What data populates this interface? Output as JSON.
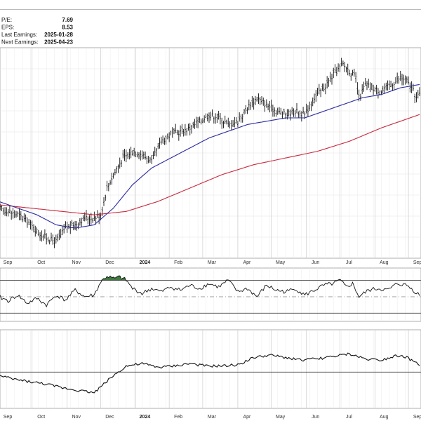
{
  "fundamentals": [
    {
      "label": "P/E:",
      "value": "7.69"
    },
    {
      "label": "EPS:",
      "value": "8.53"
    },
    {
      "label": "Last Earnings:",
      "value": "2025-01-28"
    },
    {
      "label": "Next Earnings:",
      "value": "2025-04-23"
    }
  ],
  "colors": {
    "price": "#111111",
    "ma_short": "#2b2ba0",
    "ma_long": "#c8283c",
    "rsi_fill": "#3f7a3f",
    "grid": "#dddddd"
  },
  "chart_data": [
    {
      "type": "line",
      "panel": "price",
      "style": "ohlc-bars",
      "x_ticks": [
        "Sep",
        "Oct",
        "Nov",
        "Dec",
        "2024",
        "Feb",
        "Mar",
        "Apr",
        "May",
        "Jun",
        "Jul",
        "Aug",
        "Sep"
      ],
      "x_index": [
        0,
        21,
        43,
        64,
        86,
        107,
        128,
        150,
        171,
        193,
        214,
        236,
        257
      ],
      "grid": true,
      "series": [
        {
          "role": "price",
          "x": [
            0,
            6,
            12,
            18,
            24,
            30,
            36,
            42,
            48,
            54,
            60,
            64,
            68,
            72,
            78,
            84,
            90,
            96,
            102,
            108,
            114,
            120,
            126,
            132,
            138,
            144,
            150,
            156,
            162,
            168,
            174,
            180,
            186,
            192,
            198,
            204,
            210,
            216,
            220,
            224,
            226,
            230,
            234,
            240,
            246,
            252,
            256,
            260,
            262,
            264
          ],
          "y": [
            60,
            59,
            58,
            56,
            53,
            51,
            50,
            54,
            55,
            57,
            57,
            58,
            66,
            70,
            75,
            77,
            76,
            74,
            80,
            82,
            83,
            84,
            86,
            88,
            87,
            85,
            86,
            90,
            93,
            91,
            89,
            88,
            89,
            88,
            93,
            96,
            100,
            103,
            101,
            99,
            93,
            97,
            96,
            95,
            97,
            99,
            98,
            95,
            93,
            94
          ]
        },
        {
          "role": "ma_short",
          "x": [
            0,
            12,
            24,
            36,
            48,
            60,
            72,
            84,
            96,
            108,
            120,
            132,
            144,
            156,
            168,
            180,
            192,
            204,
            216,
            228,
            240,
            252,
            264
          ],
          "y": [
            62,
            60,
            58,
            55,
            54,
            55,
            60,
            67,
            72,
            75,
            78,
            81,
            83,
            85,
            86,
            87,
            87,
            89,
            91,
            93,
            94,
            96,
            97
          ]
        },
        {
          "role": "ma_long",
          "x": [
            0,
            20,
            40,
            60,
            80,
            100,
            120,
            140,
            160,
            180,
            200,
            220,
            240,
            264
          ],
          "y": [
            61,
            60,
            59,
            58,
            59,
            62,
            66,
            70,
            73,
            75,
            77,
            80,
            84,
            88
          ]
        }
      ]
    },
    {
      "type": "line",
      "panel": "rsi",
      "series": [
        {
          "role": "rsi",
          "x": [
            0,
            6,
            12,
            18,
            24,
            30,
            36,
            42,
            48,
            54,
            60,
            64,
            68,
            72,
            76,
            80,
            84,
            90,
            96,
            102,
            108,
            114,
            120,
            126,
            132,
            138,
            144,
            150,
            156,
            162,
            168,
            174,
            180,
            186,
            192,
            198,
            204,
            210,
            214,
            218,
            222,
            226,
            232,
            238,
            244,
            250,
            256,
            260,
            264
          ],
          "y": [
            50,
            45,
            52,
            42,
            48,
            40,
            52,
            46,
            58,
            50,
            52,
            68,
            75,
            72,
            74,
            70,
            60,
            54,
            60,
            56,
            62,
            58,
            64,
            60,
            66,
            62,
            70,
            56,
            60,
            50,
            64,
            58,
            56,
            60,
            52,
            58,
            64,
            66,
            70,
            62,
            66,
            50,
            58,
            60,
            58,
            66,
            64,
            58,
            52
          ]
        }
      ]
    },
    {
      "type": "line",
      "panel": "lower",
      "series": [
        {
          "role": "indicator",
          "x": [
            0,
            10,
            20,
            30,
            40,
            50,
            60,
            70,
            80,
            90,
            100,
            110,
            120,
            130,
            140,
            150,
            160,
            170,
            180,
            190,
            200,
            210,
            220,
            230,
            240,
            250,
            256,
            264
          ],
          "y": [
            47,
            44,
            42,
            40,
            37,
            35,
            33,
            45,
            55,
            57,
            54,
            55,
            57,
            55,
            55,
            56,
            62,
            64,
            62,
            60,
            61,
            63,
            65,
            61,
            60,
            64,
            62,
            56
          ]
        }
      ]
    }
  ]
}
